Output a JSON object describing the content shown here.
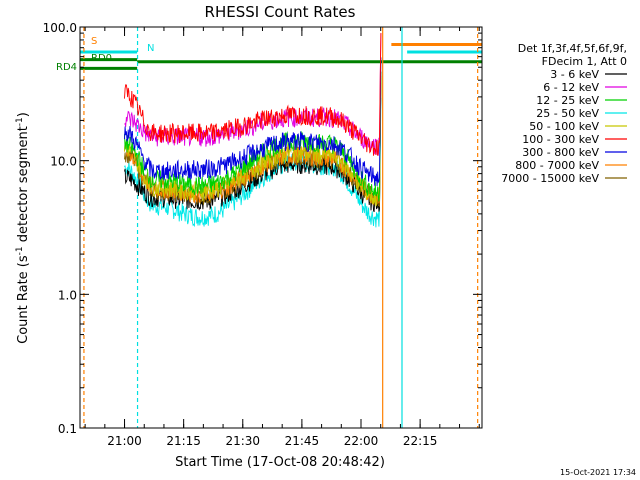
{
  "chart_data": {
    "type": "line",
    "title": "RHESSI Count Rates",
    "xlabel": "Start Time (17-Oct-08 20:48:42)",
    "ylabel_main": "Count Rate (s",
    "ylabel_sup1": "-1",
    "ylabel_mid": " detector segment",
    "ylabel_sup2": "-1",
    "ylabel_end": ")",
    "yscale": "log",
    "ylim": [
      0.1,
      100
    ],
    "xlim_minutes": [
      0,
      102
    ],
    "x_ticks": [
      {
        "label": "21:00",
        "minute": 11.3
      },
      {
        "label": "21:15",
        "minute": 26.3
      },
      {
        "label": "21:30",
        "minute": 41.3
      },
      {
        "label": "21:45",
        "minute": 56.3
      },
      {
        "label": "22:00",
        "minute": 71.3
      },
      {
        "label": "22:15",
        "minute": 86.3
      }
    ],
    "y_ticks": [
      {
        "label": "0.1",
        "value": 0.1
      },
      {
        "label": "1.0",
        "value": 1.0
      },
      {
        "label": "10.0",
        "value": 10.0
      },
      {
        "label": "100.0",
        "value": 100.0
      }
    ],
    "legend_header": [
      "Det 1f,3f,4f,5f,6f,9f,",
      "FDecim 1, Att 0"
    ],
    "series": [
      {
        "name": "3 - 6 keV",
        "color": "#000000",
        "key": [
          7.5,
          5.3,
          5.0,
          9.4,
          9.1,
          4.8
        ]
      },
      {
        "name": "6 - 12 keV",
        "color": "#e000e0",
        "key": [
          21,
          15,
          15,
          21,
          21,
          13
        ]
      },
      {
        "name": "12 - 25 keV",
        "color": "#00d000",
        "key": [
          13.5,
          7.2,
          6.5,
          14,
          13.5,
          5.8
        ]
      },
      {
        "name": "25 - 50 keV",
        "color": "#00e8e8",
        "key": [
          9,
          4.6,
          3.8,
          9.6,
          9.2,
          3.7
        ]
      },
      {
        "name": "50 - 100 keV",
        "color": "#c8c800",
        "key": [
          12.5,
          6.4,
          5.9,
          11.5,
          11,
          5.2
        ]
      },
      {
        "name": "100 - 300 keV",
        "color": "#ff0000",
        "key": [
          32,
          16,
          16,
          22,
          21.5,
          12.5
        ]
      },
      {
        "name": "300 - 800 keV",
        "color": "#0000e0",
        "key": [
          16.5,
          8.3,
          8.6,
          14,
          13.5,
          7.4
        ]
      },
      {
        "name": "800 - 7000 keV",
        "color": "#ff8000",
        "key": [
          12,
          6.2,
          5.7,
          11,
          10.5,
          5.4
        ]
      },
      {
        "name": "7000 - 15000 keV",
        "color": "#806000",
        "key": [
          11.5,
          6.0,
          5.5,
          10.8,
          10.3,
          5.2
        ]
      }
    ],
    "data_window_minutes": [
      11.3,
      76.0
    ],
    "annotations": [
      {
        "label": "S",
        "color": "#ff8000"
      },
      {
        "label": "N",
        "color": "#00e0e0"
      },
      {
        "label": "RD0",
        "color": "#008000"
      },
      {
        "label": "RD4",
        "color": "#008000"
      }
    ],
    "flag_bars": [
      {
        "name": "saa",
        "color": "#ff8000",
        "level": 74,
        "from": 79,
        "to": 102
      },
      {
        "name": "night",
        "color": "#00e0e0",
        "level": 65,
        "from": 0,
        "to": 14.5
      },
      {
        "name": "night",
        "color": "#00e0e0",
        "level": 65,
        "from": 83,
        "to": 102
      },
      {
        "name": "decim-rd0",
        "color": "#008000",
        "level": 57,
        "from": 0,
        "to": 14.5
      },
      {
        "name": "decim-rd0",
        "color": "#008000",
        "level": 55,
        "from": 14.5,
        "to": 102
      },
      {
        "name": "decim-rd4",
        "color": "#008000",
        "level": 49,
        "from": 0,
        "to": 14.5
      }
    ],
    "vlines": [
      {
        "name": "night-start",
        "minute": -0.4,
        "color": "#00e0e0",
        "dashed": false
      },
      {
        "name": "saa-end",
        "minute": 1.0,
        "color": "#ff8000",
        "dashed": true
      },
      {
        "name": "night-end",
        "minute": 14.6,
        "color": "#00e0e0",
        "dashed": true
      },
      {
        "name": "saa-start",
        "minute": 76.8,
        "color": "#ff8000",
        "dashed": false
      },
      {
        "name": "night-start-2",
        "minute": 81.7,
        "color": "#00e0e0",
        "dashed": false
      },
      {
        "name": "saa-end-2",
        "minute": 100.9,
        "color": "#ff8000",
        "dashed": true
      }
    ],
    "timestamp": "15-Oct-2021 17:34"
  }
}
